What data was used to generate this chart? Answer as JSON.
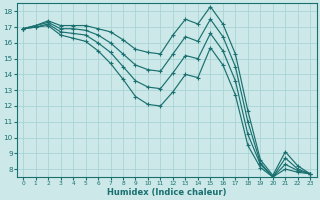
{
  "xlabel": "Humidex (Indice chaleur)",
  "ylabel": "",
  "xlim": [
    -0.5,
    23.5
  ],
  "ylim": [
    7.5,
    18.5
  ],
  "yticks": [
    8,
    9,
    10,
    11,
    12,
    13,
    14,
    15,
    16,
    17,
    18
  ],
  "xticks": [
    0,
    1,
    2,
    3,
    4,
    5,
    6,
    7,
    8,
    9,
    10,
    11,
    12,
    13,
    14,
    15,
    16,
    17,
    18,
    19,
    20,
    21,
    22,
    23
  ],
  "bg_color": "#cce8e8",
  "grid_color": "#aad4d4",
  "line_color": "#1a7070",
  "lines": [
    [
      16.9,
      17.1,
      17.4,
      17.1,
      17.1,
      17.1,
      16.9,
      16.7,
      16.2,
      15.6,
      15.4,
      15.3,
      16.5,
      17.5,
      17.2,
      18.3,
      17.2,
      15.3,
      11.7,
      8.6,
      7.6,
      9.1,
      8.2,
      7.7
    ],
    [
      16.9,
      17.1,
      17.3,
      16.9,
      16.9,
      16.8,
      16.5,
      16.0,
      15.3,
      14.6,
      14.3,
      14.2,
      15.3,
      16.4,
      16.1,
      17.5,
      16.4,
      14.5,
      11.0,
      8.4,
      7.5,
      8.7,
      8.0,
      7.7
    ],
    [
      16.9,
      17.0,
      17.2,
      16.7,
      16.6,
      16.5,
      16.0,
      15.4,
      14.5,
      13.6,
      13.2,
      13.1,
      14.1,
      15.2,
      15.0,
      16.6,
      15.5,
      13.6,
      10.2,
      8.3,
      7.5,
      8.3,
      7.9,
      7.7
    ],
    [
      16.9,
      17.0,
      17.1,
      16.5,
      16.3,
      16.1,
      15.5,
      14.7,
      13.7,
      12.6,
      12.1,
      12.0,
      12.9,
      14.0,
      13.8,
      15.7,
      14.6,
      12.7,
      9.5,
      8.1,
      7.5,
      8.0,
      7.8,
      7.7
    ]
  ]
}
